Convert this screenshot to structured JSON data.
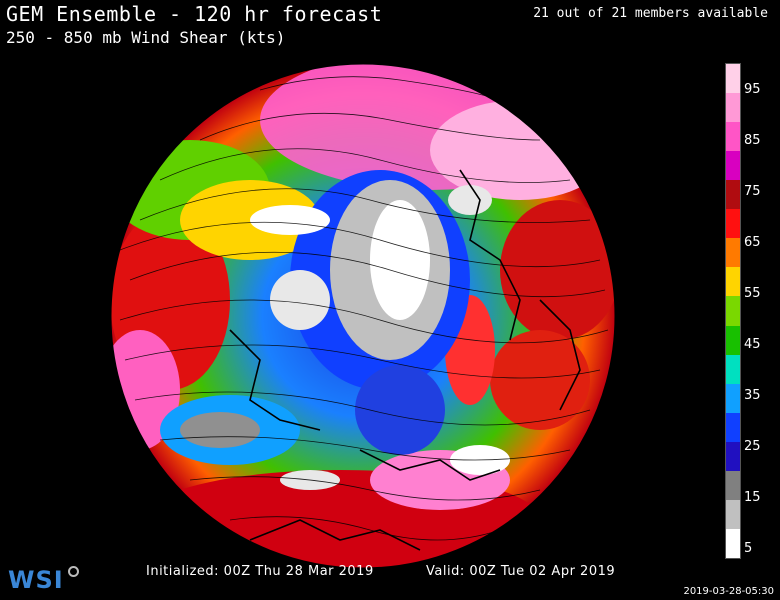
{
  "header": {
    "title": "GEM Ensemble - 120 hr forecast",
    "subtitle": "250 - 850 mb Wind Shear (kts)",
    "members": "21 out of 21 members available"
  },
  "legend": {
    "labels": [
      "95",
      "85",
      "75",
      "65",
      "55",
      "45",
      "35",
      "25",
      "15",
      "5"
    ],
    "colors": [
      "#ffd0e8",
      "#ff99d6",
      "#ff55c6",
      "#d800c0",
      "#b00c10",
      "#ff1010",
      "#ff7a00",
      "#ffd400",
      "#7ad800",
      "#18c000",
      "#00e0c0",
      "#10a0ff",
      "#1040ff",
      "#2010c0",
      "#808080",
      "#c0c0c0",
      "#ffffff"
    ]
  },
  "footer": {
    "initialized": "Initialized: 00Z Thu 28 Mar 2019",
    "valid": "Valid: 00Z Tue 02 Apr 2019",
    "logo": "WSI",
    "timestamp": "2019-03-28-05:30"
  }
}
